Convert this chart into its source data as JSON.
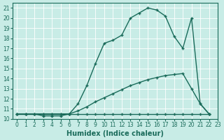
{
  "xlabel": "Humidex (Indice chaleur)",
  "bg_color": "#c8ece6",
  "line_color": "#1a6b5a",
  "grid_color": "#b0d8d0",
  "xlim": [
    -0.5,
    23
  ],
  "ylim": [
    10,
    21.5
  ],
  "yticks": [
    10,
    11,
    12,
    13,
    14,
    15,
    16,
    17,
    18,
    19,
    20,
    21
  ],
  "xticks": [
    0,
    1,
    2,
    3,
    4,
    5,
    6,
    7,
    8,
    9,
    10,
    11,
    12,
    13,
    14,
    15,
    16,
    17,
    18,
    19,
    20,
    21,
    22,
    23
  ],
  "line1_x": [
    0,
    1,
    2,
    3,
    4,
    5,
    6,
    7,
    8,
    9,
    10,
    11,
    12,
    13,
    14,
    15,
    16,
    17,
    18,
    19,
    20,
    21,
    22
  ],
  "line1_y": [
    10.5,
    10.5,
    10.5,
    10.5,
    10.5,
    10.5,
    10.5,
    10.5,
    10.5,
    10.5,
    10.5,
    10.5,
    10.5,
    10.5,
    10.5,
    10.5,
    10.5,
    10.5,
    10.5,
    10.5,
    10.5,
    10.5,
    10.5
  ],
  "line2_x": [
    0,
    1,
    2,
    3,
    4,
    5,
    6,
    7,
    8,
    9,
    10,
    11,
    12,
    13,
    14,
    15,
    16,
    17,
    18,
    19,
    20,
    21,
    22
  ],
  "line2_y": [
    10.5,
    10.5,
    10.5,
    10.5,
    10.5,
    10.5,
    10.5,
    10.8,
    11.2,
    11.7,
    12.1,
    12.5,
    12.9,
    13.3,
    13.6,
    13.9,
    14.1,
    14.3,
    14.4,
    14.5,
    13.0,
    11.5,
    10.5
  ],
  "line3_x": [
    0,
    1,
    2,
    3,
    4,
    5,
    6,
    7,
    8,
    9,
    10,
    11,
    12,
    13,
    14,
    15,
    16,
    17,
    18,
    19,
    20,
    21,
    22
  ],
  "line3_y": [
    10.5,
    10.5,
    10.5,
    10.3,
    10.3,
    10.3,
    10.5,
    11.5,
    13.3,
    15.5,
    17.5,
    17.8,
    18.3,
    20.0,
    20.5,
    21.0,
    20.8,
    20.2,
    18.2,
    17.0,
    20.0,
    11.5,
    10.5
  ],
  "marker_size": 3.5,
  "linewidth": 1.0,
  "tick_fontsize": 5.5,
  "xlabel_fontsize": 7.0
}
